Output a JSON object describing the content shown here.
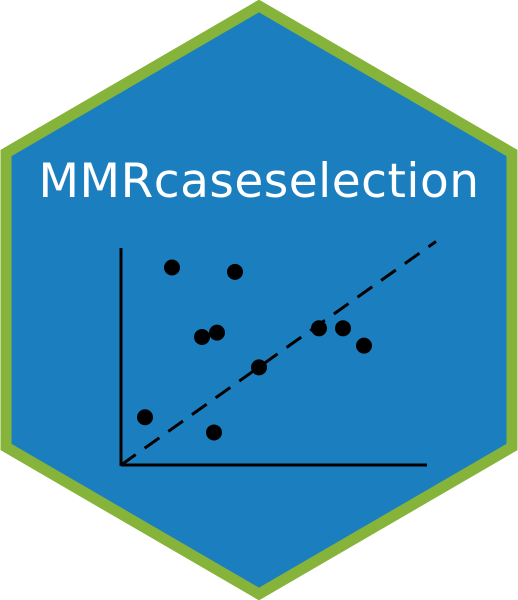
{
  "logo": {
    "title": "MMRcaseselection",
    "colors": {
      "hex_fill": "#1b7fbf",
      "hex_border": "#86b43a",
      "title_text": "#ffffff",
      "plot_ink": "#000000"
    }
  },
  "chart_data": {
    "type": "scatter",
    "title": "",
    "xlabel": "",
    "ylabel": "",
    "xlim": [
      0,
      10
    ],
    "ylim": [
      0,
      10
    ],
    "ticks": false,
    "grid": false,
    "legend": false,
    "points": [
      {
        "x": 0.8,
        "y": 2.2
      },
      {
        "x": 1.7,
        "y": 9.1
      },
      {
        "x": 2.7,
        "y": 5.9
      },
      {
        "x": 3.2,
        "y": 6.1
      },
      {
        "x": 3.1,
        "y": 1.5
      },
      {
        "x": 3.8,
        "y": 8.9
      },
      {
        "x": 4.6,
        "y": 4.5
      },
      {
        "x": 6.6,
        "y": 6.3
      },
      {
        "x": 7.4,
        "y": 6.3
      },
      {
        "x": 8.1,
        "y": 5.5
      }
    ],
    "fit_line": {
      "style": "dashed",
      "from": {
        "x": 0,
        "y": 0
      },
      "to": {
        "x": 10.5,
        "y": 10.3
      }
    }
  }
}
